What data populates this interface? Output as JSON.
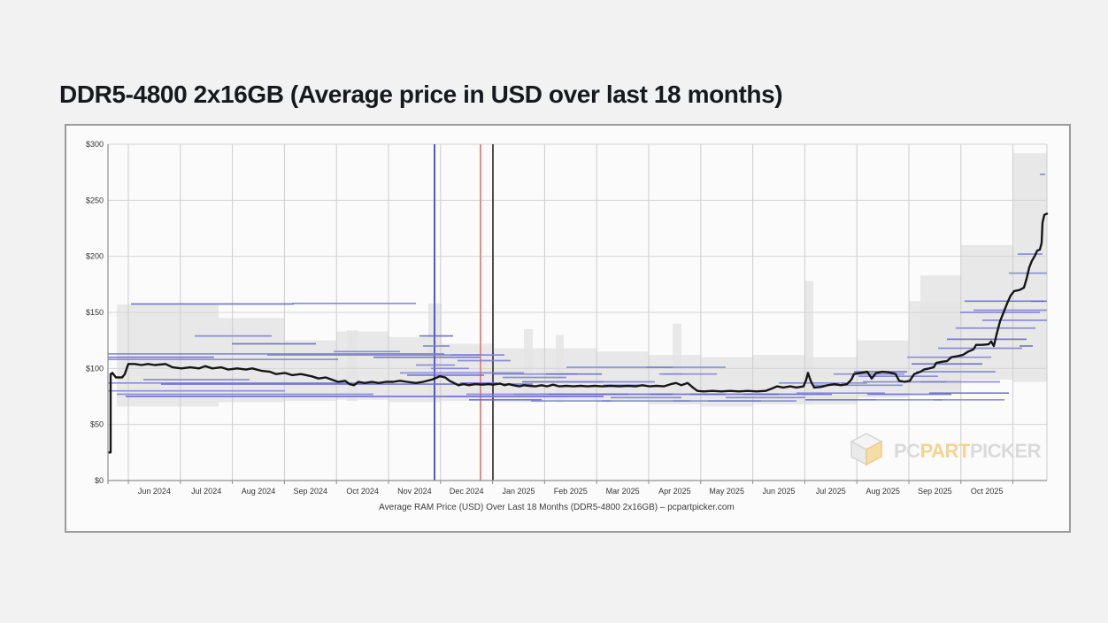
{
  "page": {
    "background_color": "#f2f2f3"
  },
  "chart_data": {
    "type": "line",
    "title": "DDR5-4800 2x16GB (Average price in USD over last 18 months)",
    "caption": "Average RAM Price (USD) Over Last 18 Months (DDR5-4800 2x16GB) – pcpartpicker.com",
    "legend": "none",
    "grid": true,
    "y_axis": {
      "unit": "USD",
      "ylim": [
        0,
        300
      ],
      "ticks": [
        0,
        50,
        100,
        150,
        200,
        250,
        300
      ],
      "tick_labels": [
        "$0",
        "$50",
        "$100",
        "$150",
        "$200",
        "$250",
        "$300"
      ]
    },
    "x_axis": {
      "months_shown": 18,
      "month_labels": [
        "Jun 2024",
        "Jul 2024",
        "Aug 2024",
        "Sep 2024",
        "Oct 2024",
        "Nov 2024",
        "Dec 2024",
        "Jan 2025",
        "Feb 2025",
        "Mar 2025",
        "Apr 2025",
        "May 2025",
        "Jun 2025",
        "Jul 2025",
        "Aug 2025",
        "Sep 2025",
        "Oct 2025"
      ],
      "x_unit": "px offset along 18-month timeline (about 58.8 px per month, 0 = left edge of plot)",
      "month_start_t": 23,
      "month_width_t": 58.8,
      "timeline_total_t": 1061
    },
    "series": {
      "name": "Average price (USD)",
      "points": [
        [
          1,
          25
        ],
        [
          3,
          25
        ],
        [
          3,
          95
        ],
        [
          5,
          96
        ],
        [
          9,
          92
        ],
        [
          16,
          92
        ],
        [
          19,
          95
        ],
        [
          23,
          104
        ],
        [
          30,
          104
        ],
        [
          38,
          103
        ],
        [
          45,
          104
        ],
        [
          53,
          103
        ],
        [
          65,
          104
        ],
        [
          73,
          101
        ],
        [
          83,
          100
        ],
        [
          93,
          101
        ],
        [
          103,
          100
        ],
        [
          110,
          102
        ],
        [
          118,
          100
        ],
        [
          128,
          101
        ],
        [
          136,
          99
        ],
        [
          146,
          100
        ],
        [
          156,
          99
        ],
        [
          163,
          100
        ],
        [
          173,
          98
        ],
        [
          183,
          97
        ],
        [
          190,
          95
        ],
        [
          200,
          96
        ],
        [
          208,
          94
        ],
        [
          218,
          95
        ],
        [
          230,
          93
        ],
        [
          238,
          91
        ],
        [
          246,
          92
        ],
        [
          253,
          90
        ],
        [
          260,
          88
        ],
        [
          268,
          89
        ],
        [
          273,
          86
        ],
        [
          278,
          85
        ],
        [
          283,
          88
        ],
        [
          290,
          87
        ],
        [
          298,
          88
        ],
        [
          306,
          87
        ],
        [
          314,
          88
        ],
        [
          322,
          88
        ],
        [
          330,
          89
        ],
        [
          338,
          88
        ],
        [
          348,
          87
        ],
        [
          356,
          88
        ],
        [
          366,
          90
        ],
        [
          372,
          92
        ],
        [
          375,
          93
        ],
        [
          381,
          92
        ],
        [
          386,
          89
        ],
        [
          391,
          87
        ],
        [
          396,
          85
        ],
        [
          402,
          86
        ],
        [
          408,
          85
        ],
        [
          415,
          86
        ],
        [
          423,
          85.5
        ],
        [
          430,
          86
        ],
        [
          435,
          85.5
        ],
        [
          443,
          86.5
        ],
        [
          448,
          85
        ],
        [
          453,
          86
        ],
        [
          458,
          85
        ],
        [
          465,
          84
        ],
        [
          470,
          85
        ],
        [
          476,
          84.5
        ],
        [
          483,
          84
        ],
        [
          490,
          85
        ],
        [
          496,
          84
        ],
        [
          503,
          85.5
        ],
        [
          510,
          84
        ],
        [
          518,
          84.5
        ],
        [
          526,
          84
        ],
        [
          534,
          84.5
        ],
        [
          542,
          84
        ],
        [
          550,
          84.5
        ],
        [
          558,
          84
        ],
        [
          568,
          84.5
        ],
        [
          578,
          84
        ],
        [
          588,
          84.5
        ],
        [
          596,
          84
        ],
        [
          604,
          85
        ],
        [
          612,
          84
        ],
        [
          620,
          84.5
        ],
        [
          628,
          84
        ],
        [
          636,
          86
        ],
        [
          642,
          87
        ],
        [
          648,
          85
        ],
        [
          655,
          87
        ],
        [
          661,
          83
        ],
        [
          666,
          80
        ],
        [
          673,
          79.5
        ],
        [
          683,
          80
        ],
        [
          693,
          79.5
        ],
        [
          703,
          80
        ],
        [
          713,
          79.5
        ],
        [
          723,
          80
        ],
        [
          733,
          79.5
        ],
        [
          743,
          80
        ],
        [
          750,
          82
        ],
        [
          756,
          84
        ],
        [
          763,
          83
        ],
        [
          771,
          84
        ],
        [
          778,
          83
        ],
        [
          786,
          84
        ],
        [
          789,
          90
        ],
        [
          791,
          96
        ],
        [
          794,
          89
        ],
        [
          798,
          83
        ],
        [
          806,
          83.5
        ],
        [
          813,
          85
        ],
        [
          821,
          86
        ],
        [
          828,
          85
        ],
        [
          835,
          86
        ],
        [
          840,
          90
        ],
        [
          843,
          95
        ],
        [
          850,
          96
        ],
        [
          858,
          97
        ],
        [
          863,
          91
        ],
        [
          868,
          96
        ],
        [
          875,
          97
        ],
        [
          883,
          96.5
        ],
        [
          890,
          95
        ],
        [
          894,
          89
        ],
        [
          900,
          88
        ],
        [
          906,
          89
        ],
        [
          911,
          95
        ],
        [
          918,
          97
        ],
        [
          922,
          99
        ],
        [
          928,
          100
        ],
        [
          933,
          101
        ],
        [
          936,
          105
        ],
        [
          943,
          106
        ],
        [
          948,
          106.5
        ],
        [
          953,
          110
        ],
        [
          960,
          111
        ],
        [
          966,
          112
        ],
        [
          972,
          115
        ],
        [
          978,
          117
        ],
        [
          981,
          121
        ],
        [
          988,
          121
        ],
        [
          995,
          121.5
        ],
        [
          998,
          124
        ],
        [
          1001,
          120
        ],
        [
          1004,
          130
        ],
        [
          1008,
          142
        ],
        [
          1012,
          150
        ],
        [
          1016,
          158
        ],
        [
          1020,
          165
        ],
        [
          1024,
          169
        ],
        [
          1030,
          170
        ],
        [
          1035,
          172
        ],
        [
          1038,
          180
        ],
        [
          1041,
          190
        ],
        [
          1044,
          196
        ],
        [
          1047,
          200
        ],
        [
          1050,
          205
        ],
        [
          1053,
          206
        ],
        [
          1055,
          212
        ],
        [
          1056,
          230
        ],
        [
          1058,
          237
        ],
        [
          1061,
          238
        ]
      ]
    },
    "listing_segments": [
      [
        0,
        120,
        110
      ],
      [
        0,
        260,
        108
      ],
      [
        0,
        380,
        113
      ],
      [
        26,
        210,
        157.5
      ],
      [
        208,
        348,
        158
      ],
      [
        0,
        300,
        87
      ],
      [
        60,
        480,
        86
      ],
      [
        0,
        200,
        80
      ],
      [
        10,
        300,
        77
      ],
      [
        20,
        560,
        75
      ],
      [
        40,
        160,
        90
      ],
      [
        98,
        185,
        129
      ],
      [
        140,
        235,
        122
      ],
      [
        180,
        420,
        112
      ],
      [
        255,
        330,
        115
      ],
      [
        300,
        420,
        110
      ],
      [
        348,
        392,
        103
      ],
      [
        365,
        408,
        100
      ],
      [
        352,
        390,
        129
      ],
      [
        356,
        386,
        120
      ],
      [
        330,
        470,
        96
      ],
      [
        338,
        425,
        94
      ],
      [
        388,
        448,
        112
      ],
      [
        395,
        455,
        107
      ],
      [
        398,
        440,
        87
      ],
      [
        405,
        500,
        77
      ],
      [
        380,
        520,
        75
      ],
      [
        408,
        490,
        72
      ],
      [
        436,
        530,
        95
      ],
      [
        446,
        518,
        92
      ],
      [
        468,
        560,
        88
      ],
      [
        458,
        588,
        77
      ],
      [
        478,
        568,
        71
      ],
      [
        495,
        558,
        95
      ],
      [
        518,
        638,
        101
      ],
      [
        538,
        618,
        88
      ],
      [
        498,
        638,
        77
      ],
      [
        558,
        658,
        71
      ],
      [
        568,
        648,
        74
      ],
      [
        560,
        600,
        85
      ],
      [
        608,
        698,
        101
      ],
      [
        623,
        688,
        95
      ],
      [
        613,
        698,
        77
      ],
      [
        638,
        738,
        71
      ],
      [
        628,
        648,
        95
      ],
      [
        658,
        758,
        77
      ],
      [
        678,
        778,
        71
      ],
      [
        698,
        788,
        74
      ],
      [
        718,
        818,
        77
      ],
      [
        758,
        858,
        87
      ],
      [
        778,
        878,
        78
      ],
      [
        788,
        868,
        72
      ],
      [
        798,
        898,
        85
      ],
      [
        820,
        900,
        95
      ],
      [
        843,
        903,
        97
      ],
      [
        848,
        938,
        93
      ],
      [
        853,
        948,
        88
      ],
      [
        858,
        953,
        77
      ],
      [
        868,
        943,
        72
      ],
      [
        903,
        998,
        110
      ],
      [
        908,
        988,
        104
      ],
      [
        913,
        1003,
        97
      ],
      [
        918,
        1008,
        88
      ],
      [
        928,
        1018,
        78
      ],
      [
        933,
        1013,
        72
      ],
      [
        938,
        1033,
        118
      ],
      [
        948,
        1038,
        126
      ],
      [
        958,
        1048,
        136
      ],
      [
        963,
        1053,
        150
      ],
      [
        968,
        1058,
        160
      ],
      [
        978,
        1061,
        152
      ],
      [
        988,
        1061,
        143
      ],
      [
        1030,
        1045,
        120
      ],
      [
        1018,
        1061,
        185
      ],
      [
        1028,
        1056,
        202
      ],
      [
        1043,
        1061,
        160
      ],
      [
        1053,
        1059,
        273
      ]
    ],
    "range_bands": [
      [
        10,
        125,
        66,
        157
      ],
      [
        125,
        199,
        70,
        145
      ],
      [
        199,
        258,
        71,
        125
      ],
      [
        270,
        282,
        71,
        134
      ],
      [
        258,
        317,
        72,
        133
      ],
      [
        362,
        377,
        72,
        158
      ],
      [
        317,
        376,
        70,
        128
      ],
      [
        376,
        435,
        71,
        122
      ],
      [
        470,
        480,
        70,
        135
      ],
      [
        435,
        494,
        70,
        118
      ],
      [
        506,
        515,
        70,
        130
      ],
      [
        494,
        552,
        71,
        118
      ],
      [
        552,
        611,
        70,
        115
      ],
      [
        638,
        648,
        70,
        140
      ],
      [
        611,
        670,
        68,
        112
      ],
      [
        670,
        729,
        66,
        110
      ],
      [
        729,
        787,
        68,
        112
      ],
      [
        787,
        797,
        68,
        178
      ],
      [
        787,
        846,
        68,
        110
      ],
      [
        846,
        905,
        74,
        125
      ],
      [
        905,
        964,
        78,
        160
      ],
      [
        918,
        964,
        80,
        183
      ],
      [
        964,
        1023,
        90,
        210
      ],
      [
        1023,
        1061,
        88,
        292
      ]
    ],
    "event_lines": [
      {
        "t": 369,
        "color": "#4a5ad0"
      },
      {
        "t": 421,
        "color": "#e78b80"
      },
      {
        "t": 435,
        "color": "#4f4f4f"
      }
    ],
    "watermark": {
      "text_pc": "PC",
      "text_part": "PART",
      "text_picker": "PICKER",
      "color_gray": "#d9d9d9",
      "color_gold": "#f2d28e"
    },
    "colors": {
      "average_line": "#161616",
      "listing_segment": "#7e7ed2",
      "listing_segment_alt": "#6565c8",
      "range_band": "#e3e3e3",
      "grid_h": "#d6d6d6",
      "grid_v": "#cdcdcd",
      "axis": "#8f8f8f"
    }
  }
}
